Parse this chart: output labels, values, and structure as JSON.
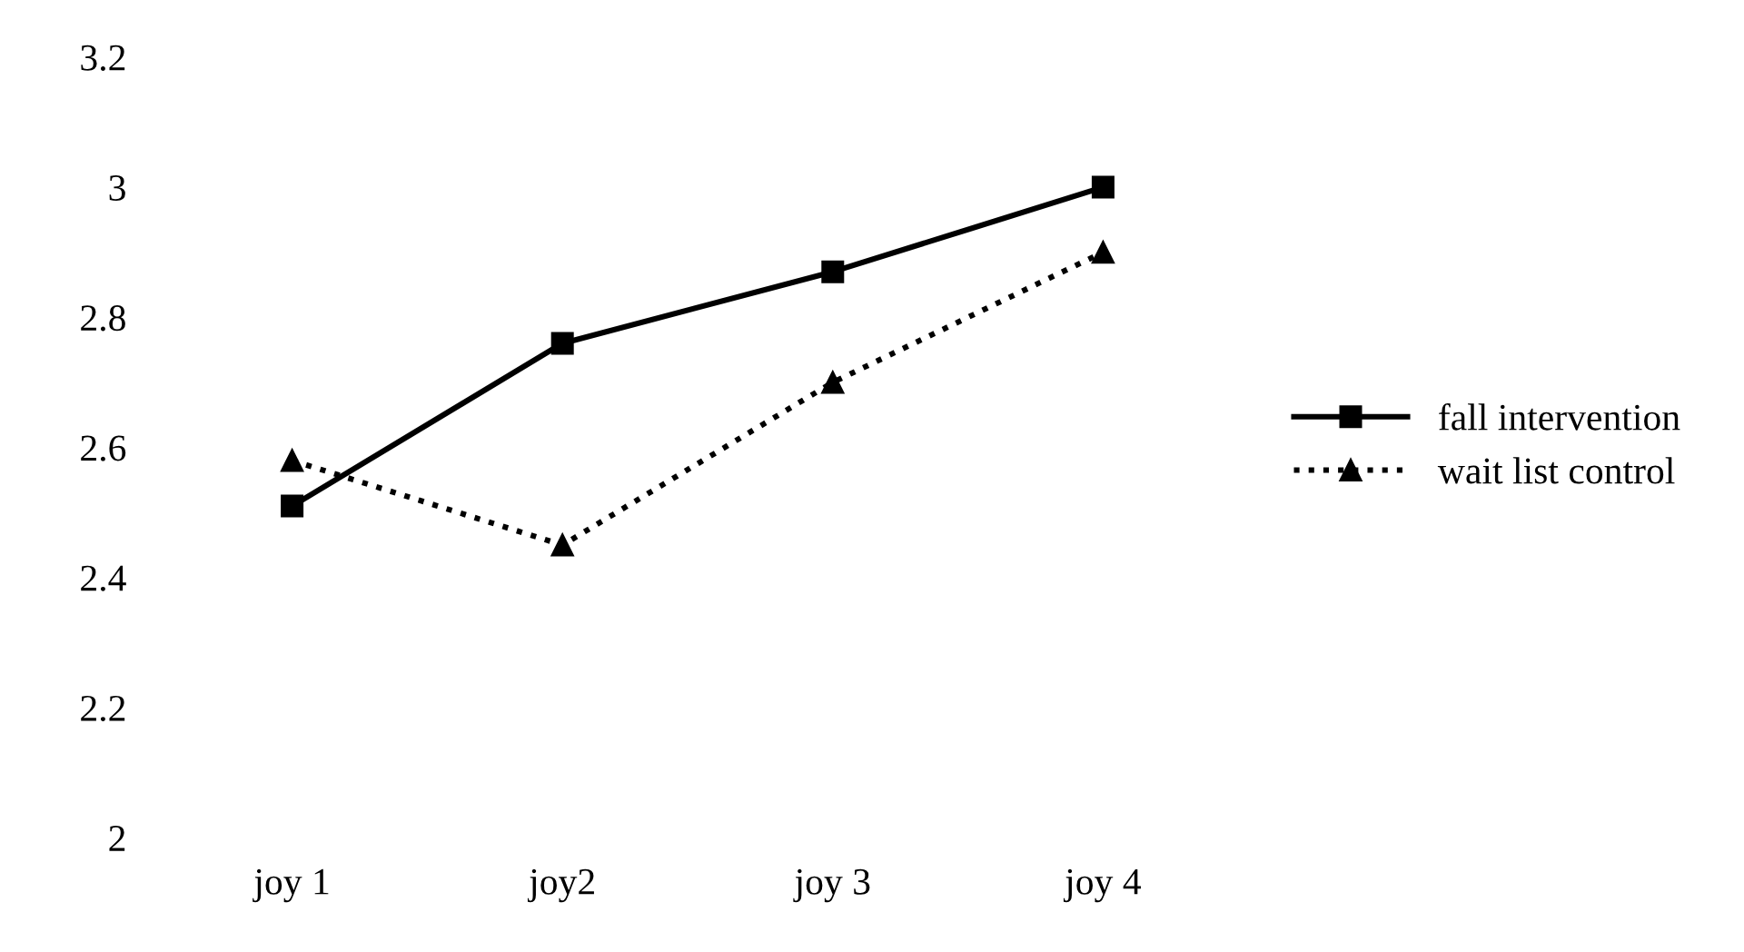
{
  "chart_data": {
    "type": "line",
    "categories": [
      "joy 1",
      "joy2",
      "joy 3",
      "joy 4"
    ],
    "series": [
      {
        "name": "fall intervention",
        "color": "#000000",
        "values": [
          2.51,
          2.76,
          2.87,
          3.0
        ],
        "marker": "square",
        "line_style": "solid"
      },
      {
        "name": "wait list control",
        "color": "#000000",
        "values": [
          2.58,
          2.45,
          2.7,
          2.9
        ],
        "marker": "triangle",
        "line_style": "dotted"
      }
    ],
    "ylim": [
      2,
      3.2
    ],
    "yticks": [
      {
        "value": 2,
        "label": "2"
      },
      {
        "value": 2.2,
        "label": "2.2"
      },
      {
        "value": 2.4,
        "label": "2.4"
      },
      {
        "value": 2.6,
        "label": "2.6"
      },
      {
        "value": 2.8,
        "label": "2.8"
      },
      {
        "value": 3,
        "label": "3"
      },
      {
        "value": 3.2,
        "label": "3.2"
      }
    ],
    "grid": false,
    "legend": "right"
  }
}
